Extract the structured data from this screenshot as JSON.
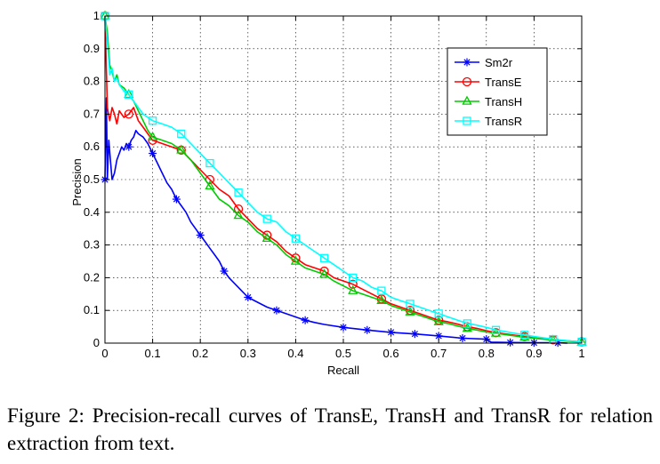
{
  "caption": "Figure 2: Precision-recall curves of TransE, TransH and TransR for relation extraction from text.",
  "chart_data": {
    "type": "line",
    "title": "",
    "xlabel": "Recall",
    "ylabel": "Precision",
    "xlim": [
      0,
      1
    ],
    "ylim": [
      0,
      1
    ],
    "xticks": [
      "0",
      "0.1",
      "0.2",
      "0.3",
      "0.4",
      "0.5",
      "0.6",
      "0.7",
      "0.8",
      "0.9",
      "1"
    ],
    "yticks": [
      "0",
      "0.1",
      "0.2",
      "0.3",
      "0.4",
      "0.5",
      "0.6",
      "0.7",
      "0.8",
      "0.9",
      "1"
    ],
    "grid": true,
    "legend_position": "top-right",
    "series": [
      {
        "name": "Sm2r",
        "color": "#0000ff",
        "marker": "star",
        "x": [
          0,
          0.003,
          0.005,
          0.008,
          0.012,
          0.015,
          0.02,
          0.025,
          0.03,
          0.035,
          0.04,
          0.045,
          0.05,
          0.055,
          0.06,
          0.065,
          0.07,
          0.08,
          0.09,
          0.1,
          0.11,
          0.12,
          0.13,
          0.14,
          0.15,
          0.16,
          0.17,
          0.18,
          0.19,
          0.2,
          0.21,
          0.22,
          0.23,
          0.24,
          0.25,
          0.26,
          0.28,
          0.3,
          0.32,
          0.34,
          0.36,
          0.38,
          0.4,
          0.42,
          0.44,
          0.46,
          0.5,
          0.55,
          0.6,
          0.65,
          0.7,
          0.75,
          0.8,
          0.81,
          0.85,
          0.9,
          0.95,
          0.97
        ],
        "y": [
          0.5,
          0.75,
          0.5,
          0.62,
          0.55,
          0.5,
          0.52,
          0.56,
          0.58,
          0.6,
          0.59,
          0.61,
          0.6,
          0.62,
          0.63,
          0.65,
          0.64,
          0.63,
          0.61,
          0.58,
          0.55,
          0.52,
          0.49,
          0.47,
          0.44,
          0.42,
          0.4,
          0.37,
          0.35,
          0.33,
          0.31,
          0.29,
          0.27,
          0.25,
          0.22,
          0.2,
          0.17,
          0.14,
          0.125,
          0.11,
          0.1,
          0.09,
          0.08,
          0.07,
          0.063,
          0.057,
          0.048,
          0.04,
          0.033,
          0.028,
          0.022,
          0.015,
          0.012,
          0.003,
          0.002,
          0.001,
          0.001,
          0.0
        ]
      },
      {
        "name": "TransE",
        "color": "#ff0000",
        "marker": "circle",
        "x": [
          0,
          0.005,
          0.01,
          0.015,
          0.02,
          0.025,
          0.03,
          0.04,
          0.05,
          0.06,
          0.07,
          0.08,
          0.09,
          0.1,
          0.12,
          0.14,
          0.16,
          0.18,
          0.2,
          0.22,
          0.24,
          0.26,
          0.28,
          0.3,
          0.32,
          0.34,
          0.36,
          0.38,
          0.4,
          0.42,
          0.44,
          0.46,
          0.48,
          0.5,
          0.52,
          0.54,
          0.56,
          0.58,
          0.6,
          0.62,
          0.64,
          0.66,
          0.68,
          0.7,
          0.72,
          0.74,
          0.76,
          0.78,
          0.8,
          0.82,
          0.84,
          0.86,
          0.88,
          0.9,
          0.92,
          0.94,
          0.96,
          0.98,
          1.0
        ],
        "y": [
          1.0,
          0.72,
          0.68,
          0.72,
          0.7,
          0.67,
          0.71,
          0.69,
          0.7,
          0.72,
          0.68,
          0.66,
          0.64,
          0.62,
          0.61,
          0.6,
          0.59,
          0.56,
          0.53,
          0.5,
          0.47,
          0.45,
          0.41,
          0.38,
          0.35,
          0.33,
          0.31,
          0.28,
          0.26,
          0.24,
          0.23,
          0.22,
          0.2,
          0.19,
          0.18,
          0.165,
          0.15,
          0.135,
          0.12,
          0.11,
          0.1,
          0.09,
          0.08,
          0.07,
          0.065,
          0.058,
          0.05,
          0.045,
          0.038,
          0.032,
          0.028,
          0.024,
          0.02,
          0.016,
          0.013,
          0.01,
          0.008,
          0.006,
          0.004
        ]
      },
      {
        "name": "TransH",
        "color": "#00cc00",
        "marker": "triangle",
        "x": [
          0,
          0.005,
          0.01,
          0.015,
          0.02,
          0.025,
          0.03,
          0.04,
          0.05,
          0.06,
          0.07,
          0.08,
          0.09,
          0.1,
          0.12,
          0.14,
          0.16,
          0.18,
          0.2,
          0.22,
          0.24,
          0.26,
          0.28,
          0.3,
          0.32,
          0.34,
          0.36,
          0.38,
          0.4,
          0.42,
          0.44,
          0.46,
          0.48,
          0.5,
          0.52,
          0.54,
          0.56,
          0.58,
          0.6,
          0.62,
          0.64,
          0.66,
          0.68,
          0.7,
          0.72,
          0.74,
          0.76,
          0.78,
          0.8,
          0.82,
          0.84,
          0.86,
          0.88,
          0.9,
          0.92,
          0.94,
          0.96,
          0.98,
          1.0
        ],
        "y": [
          1.0,
          0.95,
          0.85,
          0.83,
          0.8,
          0.82,
          0.79,
          0.78,
          0.76,
          0.74,
          0.71,
          0.68,
          0.65,
          0.63,
          0.62,
          0.61,
          0.59,
          0.56,
          0.52,
          0.48,
          0.44,
          0.42,
          0.39,
          0.37,
          0.34,
          0.32,
          0.3,
          0.27,
          0.25,
          0.23,
          0.22,
          0.21,
          0.19,
          0.175,
          0.16,
          0.15,
          0.14,
          0.13,
          0.115,
          0.105,
          0.095,
          0.085,
          0.075,
          0.065,
          0.06,
          0.052,
          0.045,
          0.04,
          0.034,
          0.03,
          0.026,
          0.022,
          0.018,
          0.015,
          0.012,
          0.009,
          0.007,
          0.005,
          0.003
        ]
      },
      {
        "name": "TransR",
        "color": "#00ffff",
        "marker": "square",
        "x": [
          0,
          0.005,
          0.01,
          0.015,
          0.02,
          0.025,
          0.03,
          0.04,
          0.05,
          0.06,
          0.07,
          0.08,
          0.09,
          0.1,
          0.12,
          0.14,
          0.16,
          0.18,
          0.2,
          0.22,
          0.24,
          0.26,
          0.28,
          0.3,
          0.32,
          0.34,
          0.36,
          0.38,
          0.4,
          0.42,
          0.44,
          0.46,
          0.48,
          0.5,
          0.52,
          0.54,
          0.56,
          0.58,
          0.6,
          0.62,
          0.64,
          0.66,
          0.68,
          0.7,
          0.72,
          0.74,
          0.76,
          0.78,
          0.8,
          0.82,
          0.84,
          0.86,
          0.88,
          0.9,
          0.92,
          0.94,
          0.96,
          0.98,
          1.0
        ],
        "y": [
          1.0,
          0.92,
          0.82,
          0.84,
          0.8,
          0.81,
          0.79,
          0.77,
          0.76,
          0.74,
          0.72,
          0.7,
          0.69,
          0.68,
          0.67,
          0.66,
          0.64,
          0.61,
          0.58,
          0.55,
          0.52,
          0.49,
          0.46,
          0.43,
          0.4,
          0.38,
          0.37,
          0.34,
          0.32,
          0.3,
          0.28,
          0.26,
          0.24,
          0.22,
          0.2,
          0.19,
          0.17,
          0.16,
          0.14,
          0.13,
          0.12,
          0.11,
          0.1,
          0.09,
          0.08,
          0.07,
          0.06,
          0.055,
          0.048,
          0.04,
          0.035,
          0.03,
          0.025,
          0.02,
          0.016,
          0.012,
          0.009,
          0.006,
          0.004
        ]
      }
    ]
  }
}
